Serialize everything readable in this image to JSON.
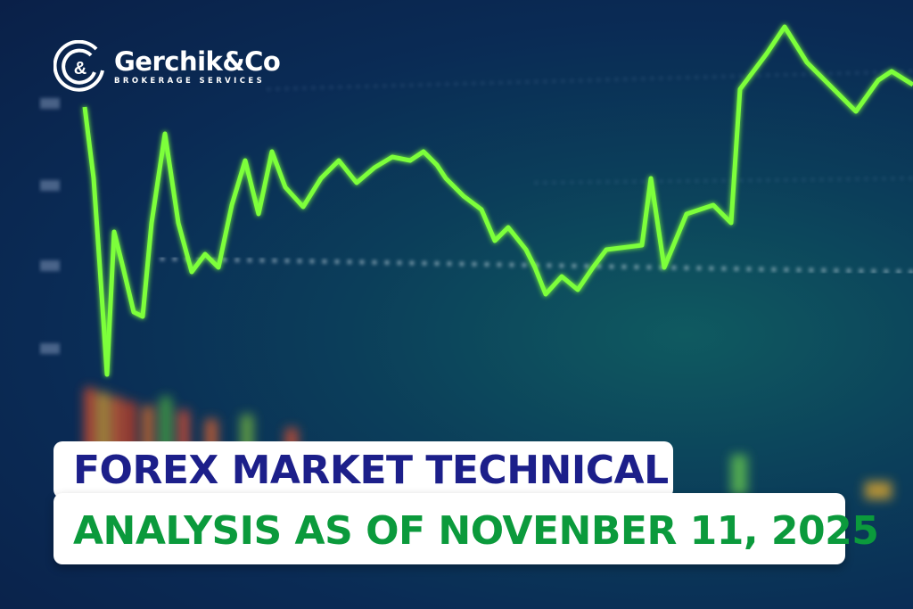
{
  "brand": {
    "name": "Gerchik&Co",
    "tagline": "BROKERAGE SERVICES",
    "logo_icon": "c-ampersand-g-rings"
  },
  "title": {
    "line1": "FOREX MARKET TECHNICAL",
    "line2": "ANALYSIS AS OF NOVENBER 11, 2025"
  },
  "colors": {
    "title_line1": "#1c1f8a",
    "title_line2": "#0b9a3c",
    "chart_line": "#7dff3a",
    "background": "#0a2b55"
  }
}
